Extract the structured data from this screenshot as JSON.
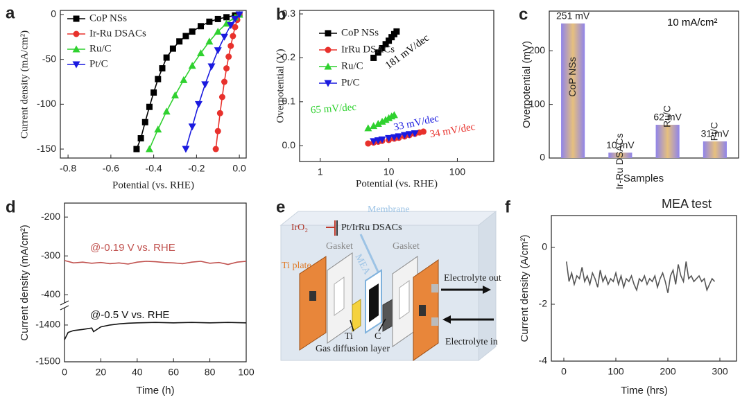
{
  "chart_data": [
    {
      "label": "a",
      "type": "line",
      "xlabel": "Potential (vs. RHE)",
      "ylabel": "Current density (mA/cm²)",
      "xlim": [
        -0.836,
        0.032
      ],
      "ylim": [
        -160,
        4.6
      ],
      "xticks": [
        -0.8,
        -0.6,
        -0.4,
        -0.2,
        {
          "value": 0,
          "label": "0.0"
        }
      ],
      "yticks": [
        0,
        -50,
        -100,
        -150
      ],
      "legend": "upper left",
      "series": [
        {
          "name": "CoP NSs",
          "color": "#000000",
          "marker": "square",
          "x": [
            -0.48,
            -0.46,
            -0.44,
            -0.42,
            -0.4,
            -0.38,
            -0.36,
            -0.34,
            -0.31,
            -0.28,
            -0.25,
            -0.22,
            -0.18,
            -0.14,
            -0.1,
            -0.06,
            -0.02,
            0.0
          ],
          "values": [
            -150,
            -138,
            -120,
            -103,
            -87,
            -72,
            -60,
            -48,
            -38,
            -30,
            -24,
            -19,
            -13,
            -8,
            -5,
            -3,
            -1,
            0
          ]
        },
        {
          "name": "Ir-Ru DSACs",
          "color": "#e8312c",
          "marker": "circle",
          "x": [
            -0.11,
            -0.1,
            -0.09,
            -0.08,
            -0.07,
            -0.06,
            -0.05,
            -0.04,
            -0.03,
            -0.02,
            -0.01,
            0.0
          ],
          "values": [
            -150,
            -130,
            -110,
            -92,
            -75,
            -60,
            -47,
            -35,
            -24,
            -14,
            -6,
            0
          ]
        },
        {
          "name": "Ru/C",
          "color": "#2fd12f",
          "marker": "triangle-up",
          "x": [
            -0.42,
            -0.38,
            -0.34,
            -0.3,
            -0.26,
            -0.22,
            -0.18,
            -0.14,
            -0.1,
            -0.06,
            -0.02,
            0.0
          ],
          "values": [
            -150,
            -128,
            -108,
            -90,
            -73,
            -57,
            -43,
            -30,
            -19,
            -10,
            -3,
            0
          ]
        },
        {
          "name": "Pt/C",
          "color": "#1a1adf",
          "marker": "triangle-down",
          "x": [
            -0.25,
            -0.22,
            -0.19,
            -0.16,
            -0.13,
            -0.1,
            -0.07,
            -0.04,
            -0.02,
            0.0
          ],
          "values": [
            -150,
            -125,
            -100,
            -78,
            -58,
            -40,
            -25,
            -12,
            -5,
            0
          ]
        }
      ]
    },
    {
      "label": "b",
      "type": "scatter",
      "xlabel": "Potential (vs. RHE)",
      "ylabel": "Overpotential (V)",
      "xlog": true,
      "xlim": [
        0.5,
        340
      ],
      "ylim": [
        -0.036,
        0.308
      ],
      "xticks": [
        1,
        10,
        100
      ],
      "yticks": [
        {
          "value": 0,
          "label": "0.0"
        },
        0.1,
        0.2,
        0.3
      ],
      "legend": "upper left",
      "series": [
        {
          "name": "CoP NSs",
          "color": "#000000",
          "marker": "square",
          "x": [
            6,
            7,
            8,
            9,
            10,
            11,
            12,
            13
          ],
          "values": [
            0.2,
            0.212,
            0.222,
            0.231,
            0.239,
            0.247,
            0.254,
            0.26
          ]
        },
        {
          "name": "IrRu DSACs",
          "color": "#e8312c",
          "marker": "circle",
          "x": [
            5,
            6,
            7,
            8,
            10,
            12,
            14,
            17,
            20,
            24,
            28,
            32
          ],
          "values": [
            0.005,
            0.007,
            0.009,
            0.011,
            0.013,
            0.016,
            0.018,
            0.021,
            0.024,
            0.027,
            0.03,
            0.032
          ]
        },
        {
          "name": "Ru/C",
          "color": "#2fd12f",
          "marker": "triangle-up",
          "x": [
            5,
            6,
            7,
            8,
            9,
            10,
            11,
            12
          ],
          "values": [
            0.04,
            0.045,
            0.05,
            0.055,
            0.059,
            0.063,
            0.067,
            0.07
          ]
        },
        {
          "name": "Pt/C",
          "color": "#1a1adf",
          "marker": "triangle-down",
          "x": [
            6,
            7,
            8,
            10,
            12,
            14,
            17,
            20,
            24
          ],
          "values": [
            0.01,
            0.012,
            0.014,
            0.017,
            0.019,
            0.021,
            0.024,
            0.026,
            0.028
          ]
        }
      ],
      "annotations": [
        {
          "text": "181 mV/dec",
          "color": "#000000"
        },
        {
          "text": "65 mV/dec",
          "color": "#2fd12f"
        },
        {
          "text": "33 mV/dec",
          "color": "#1a1adf"
        },
        {
          "text": "34 mV/dec",
          "color": "#e8312c"
        }
      ]
    },
    {
      "label": "c",
      "type": "bar",
      "xlabel": "Samples",
      "ylabel": "Overpotential (mV)",
      "ylim": [
        0,
        274
      ],
      "yticks": [
        0,
        100,
        200
      ],
      "gradient": [
        "#8f84ea",
        "#e6c07e"
      ],
      "categories": [
        "CoP NSs",
        "Ir-Ru DSACs",
        "Ru/C",
        "Pt/C"
      ],
      "values": [
        251,
        10,
        62,
        31
      ],
      "value_labels": [
        "251 mV",
        "10 mV",
        "62 mV",
        "31 mV"
      ],
      "annotations": [
        {
          "text": "10 mA/cm²",
          "color": "#000000"
        }
      ]
    },
    {
      "label": "d",
      "type": "line",
      "xlabel": "Time (h)",
      "ylabel": "Current density (mA/cm²)",
      "xlim": [
        0,
        100
      ],
      "ylims": [
        [
          -1500,
          -1353
        ],
        [
          -421,
          -164
        ]
      ],
      "xticks": [
        0,
        20,
        40,
        60,
        80,
        100
      ],
      "yticks": [
        -1500,
        -1400,
        -400,
        -300,
        -200
      ],
      "series": [
        {
          "color": "#c0504d",
          "x": [
            0,
            5,
            10,
            15,
            20,
            25,
            30,
            35,
            40,
            45,
            50,
            55,
            60,
            65,
            70,
            75,
            80,
            85,
            90,
            95,
            100
          ],
          "values": [
            -312,
            -318,
            -316,
            -319,
            -317,
            -320,
            -318,
            -321,
            -316,
            -314,
            -315,
            -317,
            -318,
            -320,
            -316,
            -314,
            -319,
            -317,
            -322,
            -316,
            -314
          ]
        },
        {
          "color": "#111111",
          "x": [
            0,
            2,
            5,
            10,
            15,
            16,
            20,
            25,
            30,
            35,
            40,
            50,
            60,
            70,
            80,
            90,
            100
          ],
          "values": [
            -1440,
            -1420,
            -1415,
            -1412,
            -1408,
            -1418,
            -1405,
            -1400,
            -1397,
            -1395,
            -1394,
            -1393,
            -1394,
            -1393,
            -1394,
            -1393,
            -1394
          ]
        }
      ],
      "annotations": [
        {
          "text": "@-0.19 V vs. RHE",
          "color": "#c0504d"
        },
        {
          "text": "@-0.5 V vs. RHE",
          "color": "#111111"
        }
      ]
    },
    {
      "label": "f",
      "type": "line",
      "title": "MEA test",
      "xlabel": "Time (hrs)",
      "ylabel": "Current density (A/cm²)",
      "xlim": [
        -24,
        332
      ],
      "ylim": [
        -4,
        1.12
      ],
      "xticks": [
        0,
        100,
        200,
        300
      ],
      "yticks": [
        0,
        -2,
        -4
      ],
      "series": [
        {
          "color": "#555555",
          "x": [
            5,
            10,
            15,
            20,
            25,
            30,
            35,
            40,
            45,
            50,
            55,
            60,
            65,
            70,
            75,
            80,
            85,
            90,
            95,
            100,
            105,
            110,
            115,
            120,
            125,
            130,
            135,
            140,
            145,
            150,
            155,
            160,
            165,
            170,
            175,
            180,
            185,
            190,
            195,
            200,
            205,
            210,
            215,
            220,
            225,
            230,
            235,
            240,
            245,
            250,
            255,
            260,
            265,
            270,
            275,
            280,
            285,
            290
          ],
          "values": [
            -0.5,
            -1.2,
            -0.9,
            -1.3,
            -1.0,
            -1.1,
            -0.7,
            -1.2,
            -1.0,
            -1.3,
            -0.9,
            -1.1,
            -1.4,
            -0.8,
            -1.2,
            -1.0,
            -1.3,
            -1.1,
            -1.2,
            -0.9,
            -1.3,
            -1.0,
            -1.4,
            -1.1,
            -1.2,
            -1.0,
            -1.3,
            -1.5,
            -1.1,
            -1.2,
            -1.0,
            -1.3,
            -1.1,
            -1.2,
            -1.0,
            -1.4,
            -1.1,
            -0.9,
            -1.2,
            -1.6,
            -1.0,
            -0.8,
            -1.3,
            -0.6,
            -1.0,
            -1.2,
            -0.5,
            -1.1,
            -1.0,
            -1.2,
            -1.1,
            -1.0,
            -1.2,
            -1.1,
            -1.5,
            -1.3,
            -1.1,
            -1.2
          ]
        }
      ]
    }
  ],
  "diagram": {
    "label": "e",
    "texts": [
      "Membrane",
      "IrO₂",
      "Pt/IrRu DSACs",
      "Gasket",
      "MEA",
      "Gasket",
      "Ti plate",
      "Electrolyte out",
      "Ti",
      "C",
      "Gas diffusion layer",
      "Electrolyte in"
    ]
  }
}
